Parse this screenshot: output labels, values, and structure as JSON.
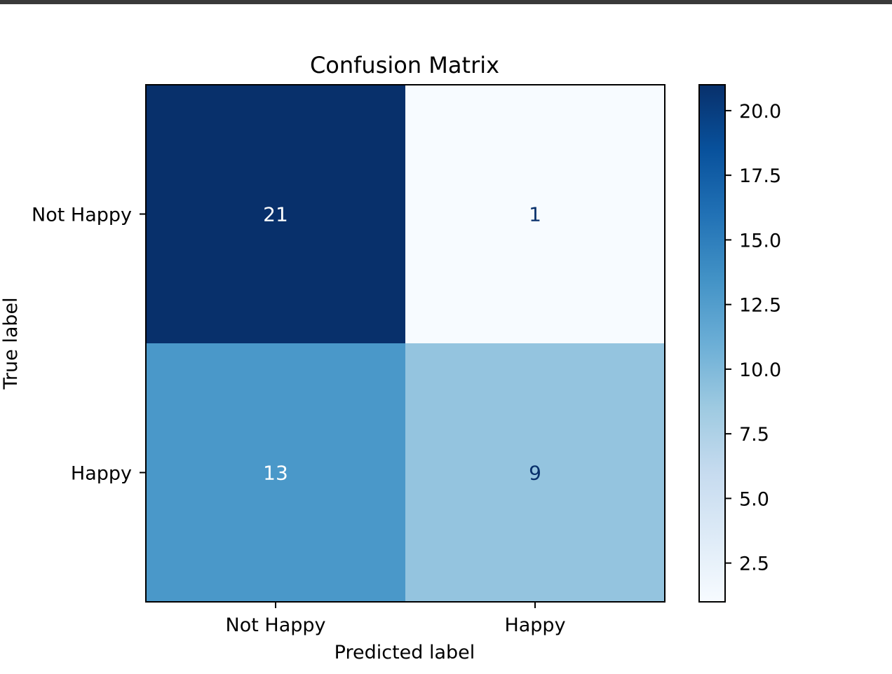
{
  "chart_data": {
    "type": "heatmap",
    "title": "Confusion Matrix",
    "xlabel": "Predicted label",
    "ylabel": "True label",
    "x_categories": [
      "Not Happy",
      "Happy"
    ],
    "y_categories": [
      "Not Happy",
      "Happy"
    ],
    "values": [
      [
        21,
        1
      ],
      [
        13,
        9
      ]
    ],
    "colormap": "Blues",
    "color_range": [
      1,
      21
    ],
    "colorbar": {
      "ticks": [
        2.5,
        5.0,
        7.5,
        10.0,
        12.5,
        15.0,
        17.5,
        20.0
      ],
      "tick_labels": [
        "2.5",
        "5.0",
        "7.5",
        "10.0",
        "12.5",
        "15.0",
        "17.5",
        "20.0"
      ]
    },
    "text_colors": {
      "on_dark": "#ffffff",
      "on_light": "#08306b"
    },
    "grid": false
  }
}
